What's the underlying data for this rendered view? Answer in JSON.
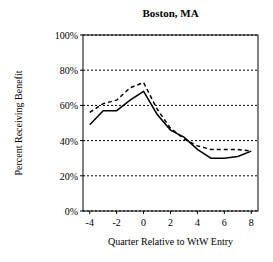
{
  "chart_data": {
    "type": "line",
    "title": "Boston, MA",
    "x_label": "Quarter Relative to WtW Entry",
    "y_label": "Percent Receiving Benefit",
    "x": [
      -4,
      -3,
      -2,
      -1,
      0,
      1,
      2,
      3,
      4,
      5,
      6,
      7,
      8
    ],
    "series": [
      {
        "color": "#000000",
        "line_style": "solid",
        "values": [
          49,
          57,
          57,
          63,
          68,
          55,
          46,
          42,
          35,
          30,
          30,
          31,
          34
        ]
      },
      {
        "color": "#000000",
        "line_style": "dashed",
        "values": [
          56,
          61,
          63,
          70,
          73,
          58,
          47,
          41,
          37,
          35,
          35,
          35,
          34
        ]
      }
    ],
    "xlim": [
      -4.5,
      8.5
    ],
    "xticks": [
      -4,
      -2,
      0,
      2,
      4,
      6,
      8
    ],
    "ylim": [
      0,
      100
    ],
    "yticks": [
      {
        "value": 0,
        "label": "0%"
      },
      {
        "value": 20,
        "label": "20%"
      },
      {
        "value": 40,
        "label": "40%"
      },
      {
        "value": 60,
        "label": "60%"
      },
      {
        "value": 80,
        "label": "80%"
      },
      {
        "value": 100,
        "label": "100%"
      }
    ],
    "grid": true
  }
}
